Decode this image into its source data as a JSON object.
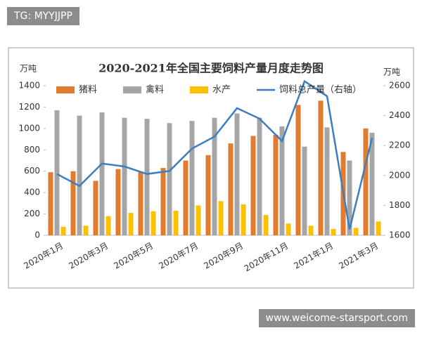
{
  "overlays": {
    "top_left": "TG: MYYJJPP",
    "bottom_right": "www.weicome-starsport.com"
  },
  "chart_data": {
    "type": "bar_line",
    "title": "2020-2021年全国主要饲料产量月度走势图",
    "y_label": "万吨",
    "y2_label": "万吨",
    "categories": [
      "2020年1月",
      null,
      "2020年3月",
      null,
      "2020年5月",
      null,
      "2020年7月",
      null,
      "2020年9月",
      null,
      "2020年11月",
      null,
      "2021年1月",
      null,
      "2021年3月"
    ],
    "series": [
      {
        "name": "猪料",
        "color": "#e07b2f",
        "type": "bar",
        "values": [
          590,
          600,
          510,
          620,
          590,
          630,
          700,
          750,
          860,
          930,
          940,
          1220,
          1260,
          780,
          1000
        ]
      },
      {
        "name": "禽料",
        "color": "#a5a5a5",
        "type": "bar",
        "values": [
          1170,
          1120,
          1150,
          1100,
          1090,
          1050,
          1070,
          1100,
          1140,
          1100,
          1020,
          830,
          1010,
          700,
          960
        ]
      },
      {
        "name": "水产",
        "color": "#ffc000",
        "type": "bar",
        "values": [
          80,
          90,
          180,
          210,
          225,
          230,
          280,
          320,
          290,
          190,
          110,
          90,
          60,
          70,
          130
        ]
      },
      {
        "name": "饲料总产量（右轴）",
        "color": "#3d7ec0",
        "type": "line",
        "axis": "y2",
        "values": [
          2010,
          1930,
          2080,
          2060,
          2010,
          2030,
          2180,
          2260,
          2450,
          2380,
          2230,
          2630,
          2530,
          1640,
          2250
        ]
      }
    ],
    "ylim": [
      0,
      1400
    ],
    "yticks": [
      0,
      200,
      400,
      600,
      800,
      1000,
      1200,
      1400
    ],
    "y2lim": [
      1600,
      2600
    ],
    "y2ticks": [
      1600,
      1800,
      2000,
      2200,
      2400,
      2600
    ],
    "legend": "top",
    "grid": false
  }
}
